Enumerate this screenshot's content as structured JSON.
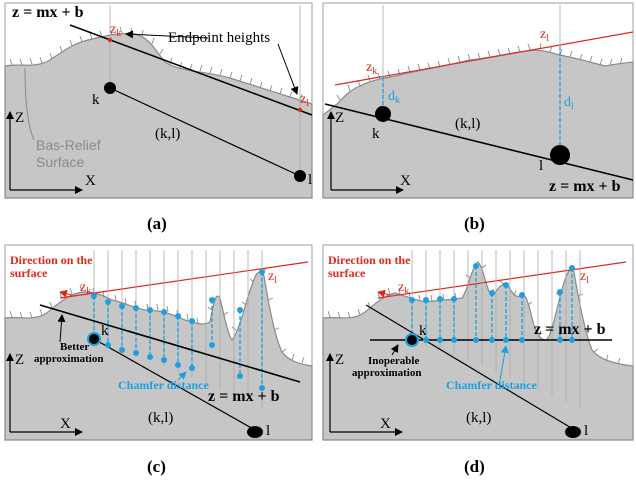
{
  "panels": {
    "a": {
      "caption": "(a)",
      "equation": "z = mx + b",
      "z_k": "z",
      "z_k_sub": "k",
      "z_l": "z",
      "z_l_sub": "l",
      "endpoint_heights": "Endpoint heights",
      "point_k": "k",
      "point_l": "l",
      "segment": "(k,l)",
      "axis_z": "Z",
      "axis_x": "X",
      "surface_line1": "Bas-Relief",
      "surface_line2": "Surface"
    },
    "b": {
      "caption": "(b)",
      "equation": "z = mx + b",
      "z_k": "z",
      "z_k_sub": "k",
      "z_l": "z",
      "z_l_sub": "l",
      "d_k": "d",
      "d_k_sub": "k",
      "d_l": "d",
      "d_l_sub": "l",
      "point_k": "k",
      "point_l": "l",
      "segment": "(k,l)",
      "axis_z": "Z",
      "axis_x": "X"
    },
    "c": {
      "caption": "(c)",
      "equation": "z = mx + b",
      "direction_line1": "Direction on the",
      "direction_line2": "surface",
      "z_k": "z",
      "z_k_sub": "k",
      "z_l": "z",
      "z_l_sub": "l",
      "point_k": "k",
      "point_l": "l",
      "segment": "(k,l)",
      "axis_z": "Z",
      "axis_x": "X",
      "approx_line1": "Better",
      "approx_line2": "approximation",
      "chamfer": "Chamfer distance"
    },
    "d": {
      "caption": "(d)",
      "equation": "z = mx + b",
      "direction_line1": "Direction on the",
      "direction_line2": "surface",
      "z_k": "z",
      "z_k_sub": "k",
      "z_l": "z",
      "z_l_sub": "l",
      "point_k": "k",
      "point_l": "l",
      "segment": "(k,l)",
      "axis_z": "Z",
      "axis_x": "X",
      "approx_line1": "Inoperable",
      "approx_line2": "approximation",
      "chamfer": "Chamfer distance"
    }
  },
  "colors": {
    "surface_fill": "#c6c6c6",
    "surface_edge": "#8a8a8a",
    "red": "#e0281e",
    "blue": "#1ea0e0",
    "black": "#000000"
  }
}
